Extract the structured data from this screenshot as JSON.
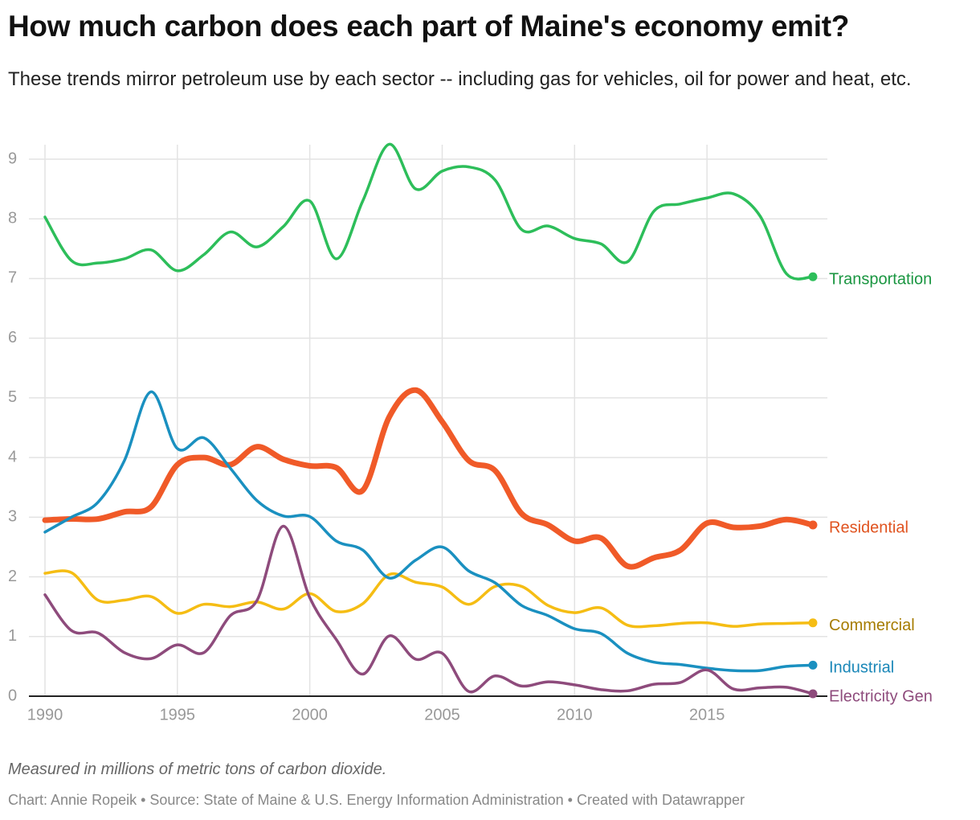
{
  "chart_data": {
    "type": "line",
    "title": "How much carbon does each part of Maine's economy emit?",
    "subtitle": "These trends mirror petroleum use by each sector -- including gas for vehicles, oil for power and heat, etc.",
    "notes": "Measured in millions of metric tons of carbon dioxide.",
    "source": "Chart: Annie Ropeik • Source: State of Maine & U.S. Energy Information Administration • Created with Datawrapper",
    "x": [
      1990,
      1991,
      1992,
      1993,
      1994,
      1995,
      1996,
      1997,
      1998,
      1999,
      2000,
      2001,
      2002,
      2003,
      2004,
      2005,
      2006,
      2007,
      2008,
      2009,
      2010,
      2011,
      2012,
      2013,
      2014,
      2015,
      2016,
      2017,
      2018,
      2019
    ],
    "xlim": [
      1990,
      2019
    ],
    "xticks": [
      1990,
      1995,
      2000,
      2005,
      2010,
      2015
    ],
    "ylim": [
      0,
      9
    ],
    "yticks": [
      0,
      1,
      2,
      3,
      4,
      5,
      6,
      7,
      8,
      9
    ],
    "grid": true,
    "series": [
      {
        "name": "Transportation",
        "color": "#2dbe5a",
        "label_color": "#1a9641",
        "width": 3.5,
        "values": [
          8.03,
          7.3,
          7.26,
          7.33,
          7.48,
          7.13,
          7.4,
          7.78,
          7.53,
          7.87,
          8.3,
          7.33,
          8.3,
          9.25,
          8.5,
          8.8,
          8.87,
          8.65,
          7.82,
          7.88,
          7.67,
          7.58,
          7.28,
          8.13,
          8.25,
          8.35,
          8.42,
          8.05,
          7.08,
          7.03
        ]
      },
      {
        "name": "Residential",
        "color": "#f05a28",
        "label_color": "#e0531f",
        "width": 7,
        "values": [
          2.95,
          2.97,
          2.97,
          3.09,
          3.17,
          3.88,
          4.0,
          3.88,
          4.18,
          3.97,
          3.86,
          3.83,
          3.45,
          4.68,
          5.13,
          4.6,
          3.95,
          3.78,
          3.06,
          2.87,
          2.6,
          2.65,
          2.18,
          2.32,
          2.45,
          2.9,
          2.83,
          2.85,
          2.96,
          2.87
        ]
      },
      {
        "name": "Commercial",
        "color": "#f5bd14",
        "label_color": "#a67c00",
        "width": 3.5,
        "values": [
          2.06,
          2.07,
          1.61,
          1.61,
          1.67,
          1.39,
          1.54,
          1.5,
          1.58,
          1.46,
          1.72,
          1.42,
          1.55,
          2.04,
          1.91,
          1.83,
          1.54,
          1.84,
          1.84,
          1.52,
          1.4,
          1.48,
          1.19,
          1.18,
          1.22,
          1.23,
          1.17,
          1.21,
          1.22,
          1.23
        ]
      },
      {
        "name": "Industrial",
        "color": "#1a90c0",
        "label_color": "#1a87b8",
        "width": 3.5,
        "values": [
          2.75,
          3.0,
          3.25,
          3.95,
          5.1,
          4.15,
          4.33,
          3.82,
          3.28,
          3.02,
          3.01,
          2.6,
          2.45,
          1.98,
          2.28,
          2.5,
          2.1,
          1.9,
          1.52,
          1.35,
          1.13,
          1.05,
          0.72,
          0.57,
          0.53,
          0.47,
          0.43,
          0.43,
          0.5,
          0.52
        ]
      },
      {
        "name": "Electricity Gen",
        "color": "#8e4b7c",
        "label_color": "#8e4b7c",
        "width": 3.5,
        "values": [
          1.7,
          1.1,
          1.06,
          0.73,
          0.63,
          0.86,
          0.73,
          1.35,
          1.6,
          2.85,
          1.65,
          0.95,
          0.37,
          1.01,
          0.62,
          0.72,
          0.08,
          0.34,
          0.17,
          0.24,
          0.19,
          0.11,
          0.09,
          0.2,
          0.23,
          0.44,
          0.12,
          0.14,
          0.15,
          0.04
        ]
      }
    ]
  }
}
